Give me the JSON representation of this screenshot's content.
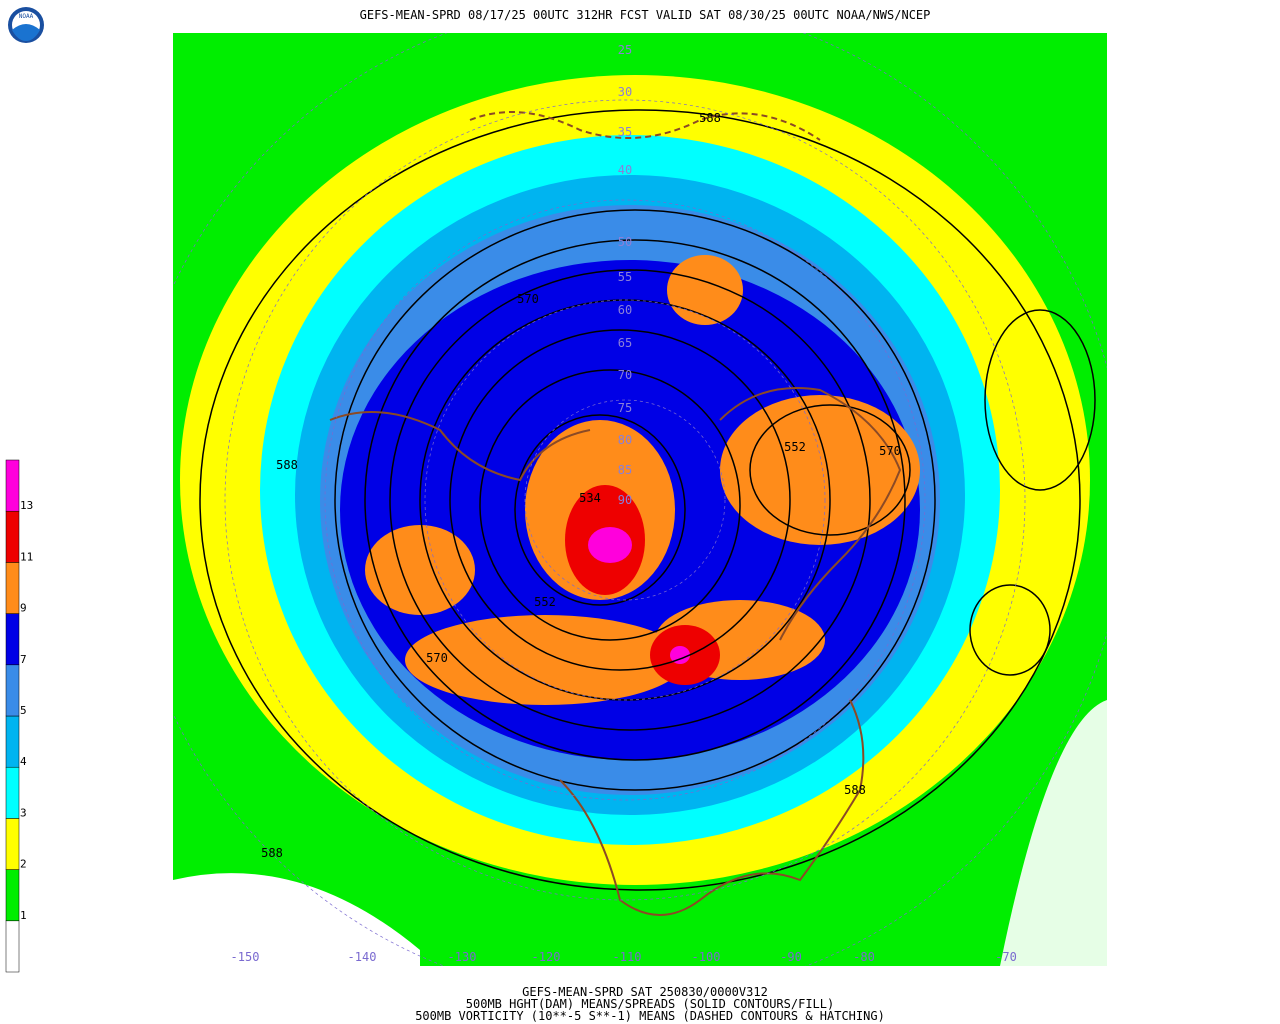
{
  "header": {
    "title": "GEFS-MEAN-SPRD 08/17/25 00UTC 312HR FCST VALID SAT 08/30/25 00UTC NOAA/NWS/NCEP",
    "logo": "NOAA"
  },
  "footer": {
    "lines": [
      "GEFS-MEAN-SPRD SAT 250830/0000V312",
      "500MB HGHT(DAM) MEANS/SPREADS (SOLID CONTOURS/FILL)",
      "500MB VORTICITY (10**-5 S**-1) MEANS (DASHED CONTOURS & HATCHING)"
    ]
  },
  "colorbar": {
    "levels": [
      1,
      2,
      3,
      4,
      5,
      7,
      9,
      11,
      13
    ],
    "colors": [
      "#ffffff",
      "#00ee00",
      "#ffff00",
      "#00ffff",
      "#00b4f0",
      "#3a8ce8",
      "#0000e6",
      "#ff8c1a",
      "#ee0000",
      "#ff00dc"
    ]
  },
  "map": {
    "latitude_labels": [
      25,
      30,
      35,
      40,
      50,
      55,
      60,
      65,
      70,
      75,
      80,
      85,
      90
    ],
    "longitude_labels": [
      -150,
      -140,
      -130,
      -120,
      -110,
      -100,
      -90,
      -80,
      -70
    ],
    "contour_labels": [
      "588",
      "570",
      "552",
      "570",
      "588",
      "534",
      "552",
      "570",
      "588",
      "588"
    ]
  }
}
